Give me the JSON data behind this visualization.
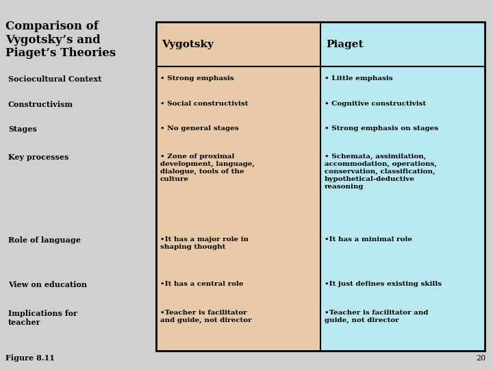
{
  "title": "Comparison of\nVygotsky’s and\nPiaget’s Theories",
  "col1_header": "Vygotsky",
  "col2_header": "Piaget",
  "col1_bg": "#E8C9A8",
  "col2_bg": "#B8E8F0",
  "bg_color": "#D0D0D0",
  "rows": [
    {
      "label": "Sociocultural Context",
      "col1": "• Strong emphasis",
      "col2": "• Little emphasis"
    },
    {
      "label": "Constructivism",
      "col1": "• Social constructivist",
      "col2": "• Cognitive constructivist"
    },
    {
      "label": "Stages",
      "col1": "• No general stages",
      "col2": "• Strong emphasis on stages"
    },
    {
      "label": "Key processes",
      "col1": "• Zone of proximal\ndevelopment, language,\ndialogue, tools of the\nculture",
      "col2": "• Schemata, assimilation,\naccommodation, operations,\nconservation, classification,\nhypothetical-deductive\nreasoning"
    },
    {
      "label": "Role of language",
      "col1": "•It has a major role in\nshaping thought",
      "col2": "•It has a minimal role"
    },
    {
      "label": "View on education",
      "col1": "•It has a central role",
      "col2": "•It just defines existing skills"
    },
    {
      "label": "Implications for\nteacher",
      "col1": "•Teacher is facilitator\nand guide, not director",
      "col2": "•Teacher is facilitator and\nguide, not director"
    }
  ],
  "figure_label": "Figure 8.11",
  "page_number": "20",
  "title_fontsize": 12,
  "header_fontsize": 11,
  "label_fontsize": 8,
  "content_fontsize": 7.5
}
